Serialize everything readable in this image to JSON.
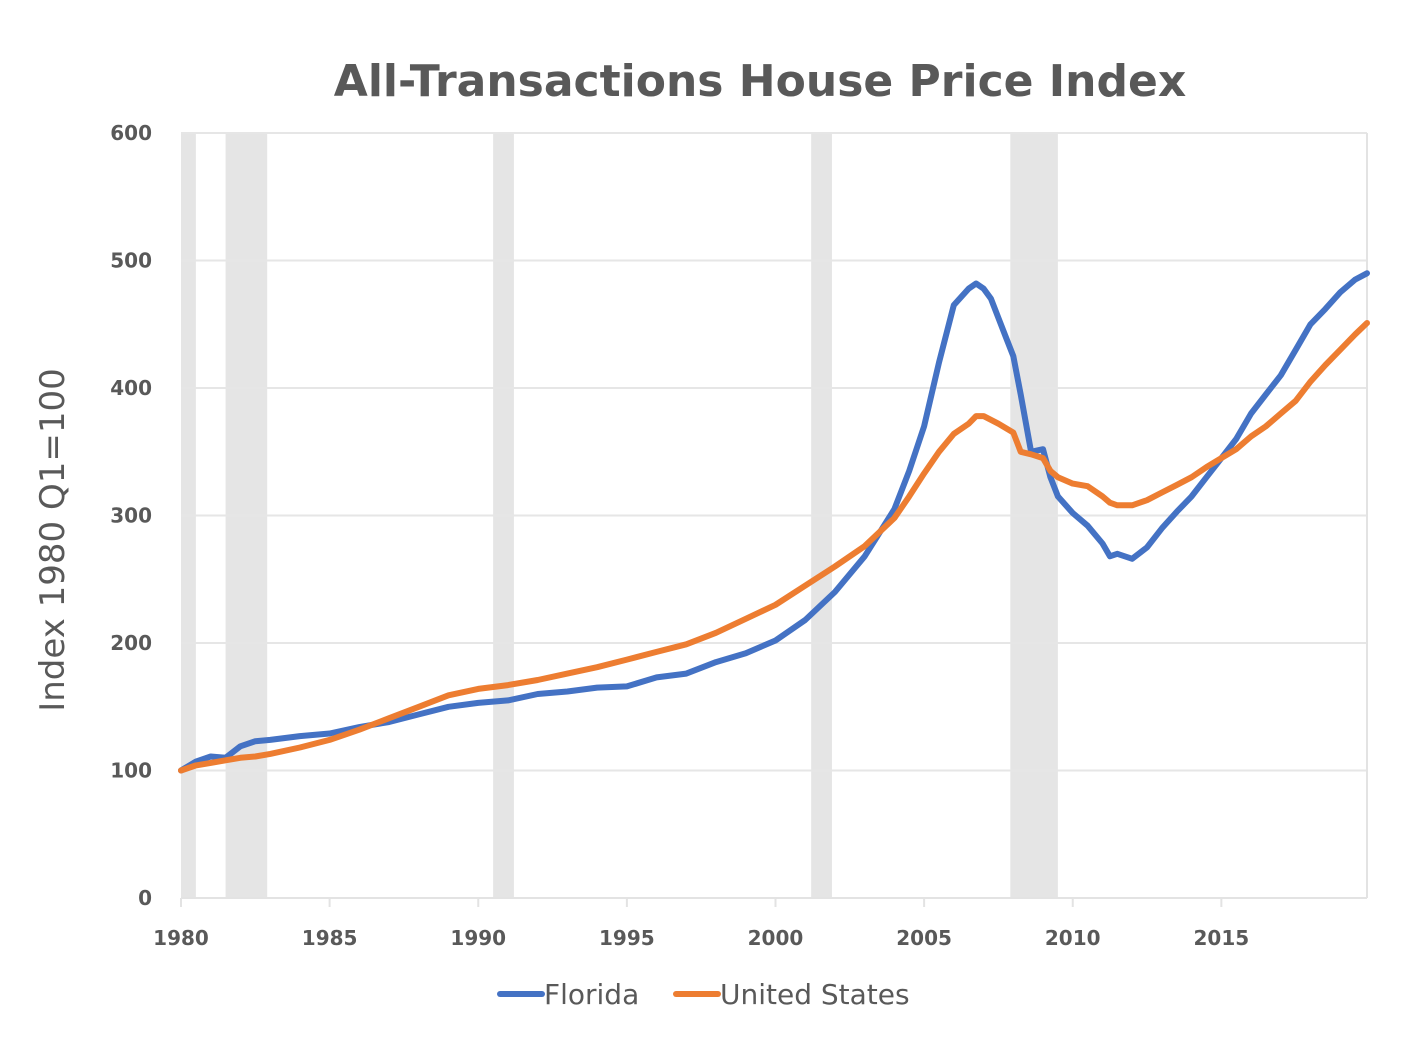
{
  "chart_data": {
    "type": "line",
    "title": "All-Transactions House Price Index",
    "xlabel": "",
    "ylabel": "Index 1980 Q1=100",
    "xlim": [
      1980,
      2019.9
    ],
    "ylim": [
      0,
      600
    ],
    "x_ticks": [
      1980,
      1985,
      1990,
      1995,
      2000,
      2005,
      2010,
      2015
    ],
    "y_ticks": [
      0,
      100,
      200,
      300,
      400,
      500,
      600
    ],
    "grid": true,
    "legend_position": "bottom",
    "recessions": [
      {
        "start": 1980.0,
        "end": 1980.5
      },
      {
        "start": 1981.5,
        "end": 1982.9
      },
      {
        "start": 1990.5,
        "end": 1991.2
      },
      {
        "start": 2001.2,
        "end": 2001.9
      },
      {
        "start": 2007.9,
        "end": 2009.5
      }
    ],
    "series": [
      {
        "name": "Florida",
        "color": "#4472C4",
        "x": [
          1980,
          1980.5,
          1981,
          1981.5,
          1982,
          1982.5,
          1983,
          1984,
          1985,
          1986,
          1987,
          1988,
          1989,
          1990,
          1991,
          1992,
          1993,
          1994,
          1995,
          1996,
          1997,
          1998,
          1999,
          2000,
          2001,
          2002,
          2003,
          2004,
          2004.5,
          2005,
          2005.5,
          2006,
          2006.5,
          2006.75,
          2007,
          2007.25,
          2007.5,
          2007.75,
          2008,
          2008.25,
          2008.6,
          2009,
          2009.25,
          2009.5,
          2010,
          2010.5,
          2011,
          2011.25,
          2011.5,
          2012,
          2012.5,
          2013,
          2013.5,
          2014,
          2014.5,
          2015,
          2015.5,
          2016,
          2016.5,
          2017,
          2017.5,
          2018,
          2018.5,
          2019,
          2019.5,
          2019.9
        ],
        "values": [
          100,
          107,
          111,
          110,
          119,
          123,
          124,
          127,
          129,
          134,
          138,
          144,
          150,
          153,
          155,
          160,
          162,
          165,
          166,
          173,
          176,
          185,
          192,
          202,
          218,
          240,
          268,
          305,
          335,
          370,
          420,
          465,
          478,
          482,
          478,
          470,
          455,
          440,
          425,
          395,
          350,
          352,
          330,
          315,
          302,
          292,
          278,
          268,
          270,
          266,
          275,
          290,
          303,
          315,
          330,
          345,
          360,
          380,
          395,
          410,
          430,
          450,
          462,
          475,
          485,
          490
        ]
      },
      {
        "name": "United States",
        "color": "#ED7D31",
        "x": [
          1980,
          1980.5,
          1981,
          1981.5,
          1982,
          1982.5,
          1983,
          1984,
          1985,
          1986,
          1987,
          1988,
          1989,
          1990,
          1991,
          1992,
          1993,
          1994,
          1995,
          1996,
          1997,
          1998,
          1999,
          2000,
          2001,
          2002,
          2003,
          2004,
          2004.5,
          2005,
          2005.5,
          2006,
          2006.5,
          2006.75,
          2007,
          2007.5,
          2008,
          2008.25,
          2008.6,
          2009,
          2009.25,
          2009.5,
          2010,
          2010.5,
          2011,
          2011.25,
          2011.5,
          2012,
          2012.5,
          2013,
          2013.5,
          2014,
          2014.5,
          2015,
          2015.5,
          2016,
          2016.5,
          2017,
          2017.5,
          2018,
          2018.5,
          2019,
          2019.5,
          2019.9
        ],
        "values": [
          100,
          104,
          106,
          108,
          110,
          111,
          113,
          118,
          124,
          132,
          141,
          150,
          159,
          164,
          167,
          171,
          176,
          181,
          187,
          193,
          199,
          208,
          219,
          230,
          245,
          260,
          276,
          298,
          315,
          333,
          350,
          364,
          372,
          378,
          378,
          372,
          365,
          350,
          348,
          345,
          335,
          330,
          325,
          323,
          315,
          310,
          308,
          308,
          312,
          318,
          324,
          330,
          338,
          345,
          352,
          362,
          370,
          380,
          390,
          405,
          418,
          430,
          442,
          451
        ]
      }
    ]
  }
}
